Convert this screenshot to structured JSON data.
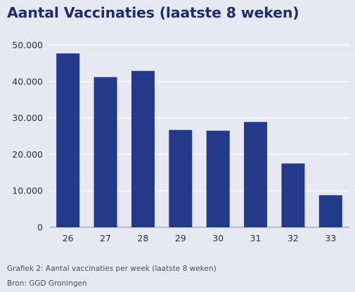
{
  "title": "Aantal Vaccinaties (laatste 8 weken)",
  "caption": "Grafiek 2: Aantal vaccinaties per week (laatste 8 weken)",
  "source": "Bron: GGD Groningen",
  "colors": {
    "bar": "#233a8b",
    "grid": "#ffffff",
    "axis": "#2a2f3d",
    "background": "#e6e9f1"
  },
  "chart_data": {
    "type": "bar",
    "title": "Aantal Vaccinaties (laatste 8 weken)",
    "xlabel": "",
    "ylabel": "",
    "categories": [
      "26",
      "27",
      "28",
      "29",
      "30",
      "31",
      "32",
      "33"
    ],
    "values": [
      47700,
      41200,
      42900,
      26700,
      26500,
      28900,
      17500,
      8800
    ],
    "ylim": [
      0,
      50000
    ],
    "yticks": [
      0,
      10000,
      20000,
      30000,
      40000,
      50000
    ],
    "ytick_labels": [
      "0",
      "10.000",
      "20.000",
      "30.000",
      "40.000",
      "50.000"
    ],
    "grid": true,
    "legend": "none"
  }
}
